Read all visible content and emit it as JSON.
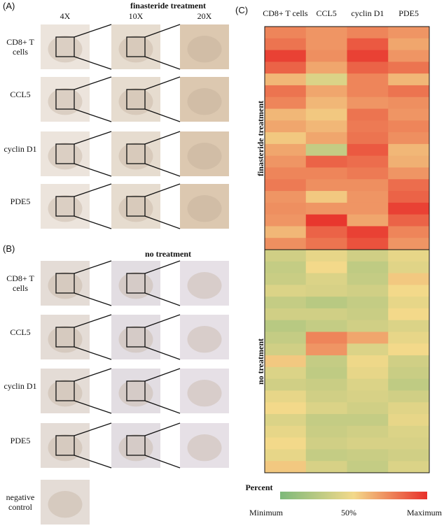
{
  "panel_a": {
    "label": "(A)",
    "title": "finasteride treatment",
    "columns": [
      "4X",
      "10X",
      "20X"
    ],
    "rows": [
      "CD8+ T cells",
      "CCL5",
      "cyclin D1",
      "PDE5"
    ]
  },
  "panel_b": {
    "label": "(B)",
    "title": "no treatment",
    "rows": [
      "CD8+ T cells",
      "CCL5",
      "cyclin D1",
      "PDE5",
      "negative control"
    ]
  },
  "panel_c": {
    "label": "(C)",
    "columns": [
      "CD8+ T cells",
      "CCL5",
      "cyclin D1",
      "PDE5"
    ],
    "groups": [
      {
        "name": "finasteride treatment",
        "values": [
          [
            75,
            70,
            75,
            70
          ],
          [
            80,
            70,
            88,
            65
          ],
          [
            95,
            72,
            95,
            70
          ],
          [
            85,
            65,
            85,
            80
          ],
          [
            60,
            40,
            75,
            60
          ],
          [
            80,
            65,
            75,
            80
          ],
          [
            75,
            60,
            70,
            72
          ],
          [
            60,
            55,
            80,
            70
          ],
          [
            65,
            60,
            78,
            75
          ],
          [
            55,
            65,
            80,
            72
          ],
          [
            65,
            30,
            88,
            60
          ],
          [
            70,
            85,
            82,
            62
          ],
          [
            75,
            75,
            78,
            70
          ],
          [
            78,
            72,
            72,
            82
          ],
          [
            70,
            55,
            70,
            85
          ],
          [
            72,
            70,
            70,
            95
          ],
          [
            70,
            98,
            65,
            85
          ],
          [
            60,
            85,
            95,
            75
          ],
          [
            72,
            80,
            90,
            70
          ]
        ]
      },
      {
        "name": "no treatment",
        "values": [
          [
            35,
            45,
            35,
            45
          ],
          [
            30,
            50,
            28,
            42
          ],
          [
            32,
            40,
            30,
            55
          ],
          [
            40,
            38,
            35,
            50
          ],
          [
            30,
            25,
            30,
            45
          ],
          [
            35,
            35,
            32,
            50
          ],
          [
            25,
            30,
            35,
            40
          ],
          [
            30,
            75,
            65,
            45
          ],
          [
            35,
            70,
            40,
            50
          ],
          [
            55,
            30,
            48,
            35
          ],
          [
            40,
            28,
            45,
            32
          ],
          [
            35,
            32,
            40,
            28
          ],
          [
            45,
            35,
            38,
            35
          ],
          [
            50,
            40,
            35,
            42
          ],
          [
            40,
            30,
            30,
            45
          ],
          [
            45,
            32,
            35,
            40
          ],
          [
            50,
            35,
            38,
            38
          ],
          [
            45,
            30,
            32,
            35
          ],
          [
            55,
            38,
            30,
            40
          ]
        ]
      }
    ],
    "colorbar_title": "Percent",
    "colorbar_labels": [
      "Minimum",
      "50%",
      "Maximum"
    ],
    "colors": [
      "#7db97a",
      "#f3d98a",
      "#e8302a"
    ],
    "range": [
      0,
      100
    ]
  }
}
